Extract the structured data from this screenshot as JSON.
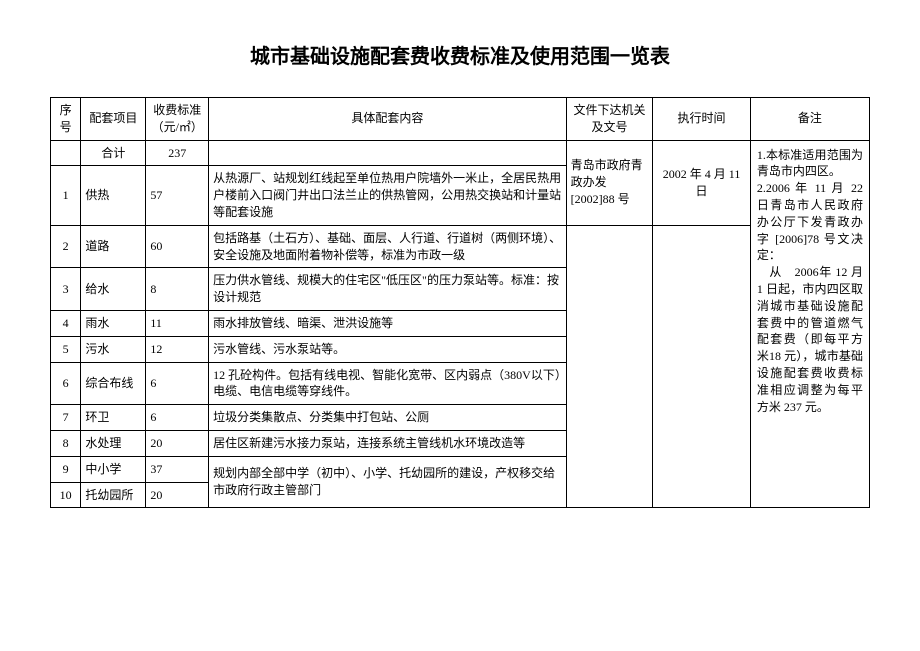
{
  "title": "城市基础设施配套费收费标准及使用范围一览表",
  "headers": {
    "seq": "序号",
    "item": "配套项目",
    "fee": "收费标准（元/㎡）",
    "content": "具体配套内容",
    "doc": "文件下达机关及文号",
    "time": "执行时间",
    "remark": "备注"
  },
  "total_row": {
    "item": "合计",
    "fee": "237",
    "doc": "青岛市政府青政办发[2002]88 号",
    "time": "2002 年 4 月 11 日"
  },
  "rows": [
    {
      "seq": "1",
      "item": "供热",
      "fee": "57",
      "content": "从热源厂、站规划红线起至单位热用户院墙外一米止，全居民热用户楼前入口阀门井出口法兰止的供热管网，公用热交换站和计量站等配套设施"
    },
    {
      "seq": "2",
      "item": "道路",
      "fee": "60",
      "content": "包括路基（土石方）、基础、面层、人行道、行道树（两侧环境）、安全设施及地面附着物补偿等，标准为市政一级"
    },
    {
      "seq": "3",
      "item": "给水",
      "fee": "8",
      "content": "压力供水管线、规模大的住宅区\"低压区\"的压力泵站等。标准：按设计规范"
    },
    {
      "seq": "4",
      "item": "雨水",
      "fee": "11",
      "content": "雨水排放管线、暗渠、泄洪设施等"
    },
    {
      "seq": "5",
      "item": "污水",
      "fee": "12",
      "content": "污水管线、污水泵站等。"
    },
    {
      "seq": "6",
      "item": "综合布线",
      "fee": "6",
      "content": "12 孔砼构件。包括有线电视、智能化宽带、区内弱点（380V以下）电缆、电信电缆等穿线件。"
    },
    {
      "seq": "7",
      "item": "环卫",
      "fee": "6",
      "content": "垃圾分类集散点、分类集中打包站、公厕"
    },
    {
      "seq": "8",
      "item": "水处理",
      "fee": "20",
      "content": "居住区新建污水接力泵站，连接系统主管线机水环境改造等"
    },
    {
      "seq": "9",
      "item": "中小学",
      "fee": "37"
    },
    {
      "seq": "10",
      "item": "托幼园所",
      "fee": "20"
    }
  ],
  "merged_school_content": "规划内部全部中学（初中）、小学、托幼园所的建设，产权移交给市政府行政主管部门",
  "remark_text": "1.本标准适用范围为青岛市内四区。\n2.2006 年 11 月 22 日青岛市人民政府办公厅下发青政办字 [2006]78 号文决定：\n　从　2006年 12 月 1 日起，市内四区取消城市基础设施配套费中的管道燃气配套费（即每平方米18 元），城市基础设施配套费收费标准相应调整为每平方米 237 元。",
  "style": {
    "title_fontsize": 20,
    "cell_fontsize": 12,
    "border_color": "#000000",
    "background_color": "#ffffff",
    "col_widths": {
      "seq": 28,
      "item": 60,
      "fee": 58,
      "content": 330,
      "doc": 80,
      "time": 90,
      "remark": 110
    }
  }
}
